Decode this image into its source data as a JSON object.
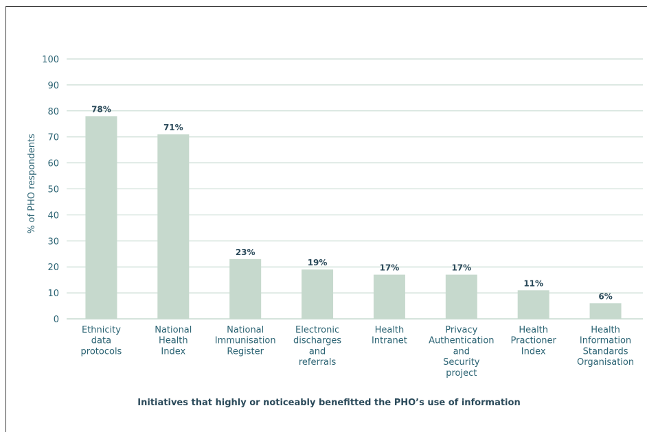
{
  "chart_data": {
    "type": "bar",
    "categories": [
      [
        "Ethnicity",
        "data",
        "protocols"
      ],
      [
        "National",
        "Health",
        "Index"
      ],
      [
        "National",
        "Immunisation",
        "Register"
      ],
      [
        "Electronic",
        "discharges",
        "and",
        "referrals"
      ],
      [
        "Health",
        "Intranet"
      ],
      [
        "Privacy",
        "Authentication",
        "and",
        "Security",
        "project"
      ],
      [
        "Health",
        "Practioner",
        "Index"
      ],
      [
        "Health",
        "Information",
        "Standards",
        "Organisation"
      ]
    ],
    "values": [
      78,
      71,
      23,
      19,
      17,
      17,
      11,
      6
    ],
    "data_labels": [
      "78%",
      "71%",
      "23%",
      "19%",
      "17%",
      "17%",
      "11%",
      "6%"
    ],
    "title": "",
    "xlabel": "Initiatives that highly or noticeably benefitted the PHO’s use of information",
    "ylabel": "% of PHO respondents",
    "ylim": [
      0,
      100
    ],
    "yticks": [
      "0",
      "10",
      "20",
      "30",
      "40",
      "50",
      "60",
      "70",
      "80",
      "90",
      "100"
    ],
    "grid": true,
    "colors": {
      "bar": "#c6d9cd",
      "grid": "#bcd3c8",
      "text": "#2b6373",
      "label": "#2b4a5a"
    }
  }
}
